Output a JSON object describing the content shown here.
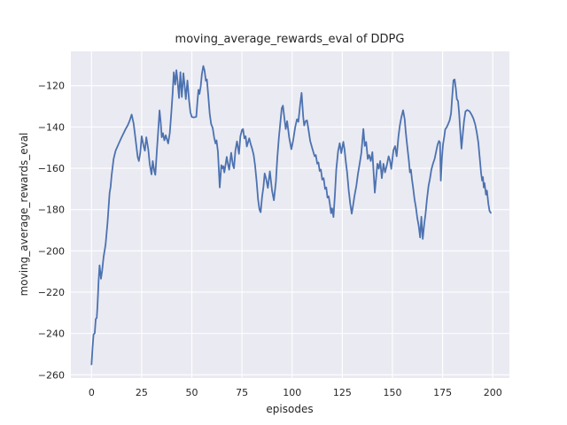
{
  "figure": {
    "background": "#ffffff"
  },
  "chart_data": {
    "type": "line",
    "title": "moving_average_rewards_eval of DDPG",
    "xlabel": "episodes",
    "ylabel": "moving_average_rewards_eval",
    "grid": true,
    "legend": "none",
    "plot_bg_color": "#eaeaf2",
    "grid_color": "#ffffff",
    "line_color": "#4c72b0",
    "text_color": "#262626",
    "xticks": [
      0,
      25,
      50,
      75,
      100,
      125,
      150,
      175,
      200
    ],
    "yticks": [
      -260,
      -240,
      -220,
      -200,
      -180,
      -160,
      -140,
      -120
    ],
    "xlim": [
      -10.3,
      208.3
    ],
    "ylim": [
      -261.6,
      -103.4
    ],
    "series_name": "moving_average_rewards_eval",
    "x": [
      0,
      0.5,
      1,
      1.6,
      2.1,
      2.6,
      3,
      3.5,
      4,
      4.7,
      5.3,
      6,
      7,
      8,
      9,
      9.5,
      10,
      11,
      11.5,
      12,
      13,
      14,
      15,
      16,
      17,
      18,
      19,
      20,
      21,
      22,
      23,
      23.6,
      24.3,
      25,
      26,
      26.6,
      27.3,
      28.3,
      29,
      29.9,
      30.5,
      31.3,
      31.8,
      32.6,
      33.3,
      33.9,
      34.5,
      35,
      35.6,
      36.3,
      37,
      37.6,
      38.2,
      39,
      39.7,
      40.4,
      41,
      41.7,
      42.3,
      43,
      43.6,
      44.3,
      45,
      45.8,
      46.4,
      47,
      47.8,
      48.6,
      49.3,
      50,
      51,
      52.2,
      52.8,
      53.3,
      53.8,
      54.4,
      55,
      55.7,
      56.3,
      57,
      57.5,
      58.2,
      58.9,
      59.6,
      60.4,
      61.1,
      61.8,
      62.3,
      63,
      63.9,
      64.7,
      65.2,
      65.7,
      66.2,
      67.4,
      68,
      68.6,
      69.6,
      70.5,
      71,
      71.7,
      72.5,
      73.5,
      74.2,
      75,
      75.5,
      76.2,
      76.8,
      77.4,
      78,
      78.6,
      79.4,
      80.1,
      80.8,
      81.5,
      82.3,
      83,
      83.7,
      84.3,
      85,
      85.7,
      86.3,
      87,
      87.9,
      88.9,
      90,
      90.9,
      91.9,
      92.6,
      93.4,
      94.2,
      94.8,
      95.4,
      96.1,
      96.8,
      97.5,
      98.5,
      99.6,
      100.5,
      101.5,
      102.4,
      103.1,
      104,
      104.7,
      105.5,
      106,
      106.7,
      107.4,
      108.1,
      109,
      110,
      111.2,
      111.8,
      112.5,
      113.1,
      113.7,
      114.3,
      115,
      115.7,
      116.4,
      117,
      117.6,
      118.2,
      118.8,
      119.4,
      119.9,
      120.6,
      121.3,
      122,
      122.9,
      123.7,
      124.5,
      125.5,
      126.1,
      126.7,
      127.4,
      128.2,
      129,
      129.7,
      130.4,
      131.1,
      132,
      132.8,
      133.7,
      134.5,
      135.5,
      136.2,
      136.9,
      137.7,
      138.4,
      139.2,
      140,
      140.6,
      141.2,
      142,
      142.5,
      143.2,
      143.9,
      144.7,
      145.5,
      146.3,
      147.2,
      148.1,
      148.8,
      149.4,
      150.5,
      151.3,
      152.1,
      153,
      153.7,
      154.4,
      155.3,
      156.1,
      156.6,
      157.2,
      157.7,
      158.2,
      158.7,
      159.2,
      159.7,
      160.3,
      161,
      161.7,
      162.4,
      163.1,
      163.8,
      164.4,
      165.1,
      165.9,
      166.5,
      167.2,
      168,
      168.7,
      169.4,
      170.2,
      171,
      171.8,
      172.5,
      173.2,
      173.7,
      174.1,
      174.7,
      175.2,
      175.8,
      176.3,
      177,
      177.8,
      178.5,
      179.2,
      179.7,
      180.4,
      181,
      181.6,
      182.1,
      182.7,
      183.2,
      183.8,
      184.4,
      185.1,
      185.7,
      186.4,
      187.3,
      188.3,
      189.3,
      190.3,
      191.2,
      192,
      192.8,
      193.5,
      194.2,
      194.7,
      195.1,
      195.5,
      195.9,
      196.6,
      197.1,
      197.8,
      198.4,
      199
    ],
    "y": [
      -255,
      -247,
      -240.5,
      -239.8,
      -233,
      -232.5,
      -226,
      -215,
      -207,
      -213.5,
      -209.5,
      -203,
      -197,
      -186,
      -172,
      -169,
      -163.5,
      -155.5,
      -153.5,
      -151.5,
      -149.3,
      -147.1,
      -145,
      -143,
      -141,
      -139.3,
      -137,
      -134,
      -138.5,
      -146.5,
      -154.5,
      -156.5,
      -152.5,
      -144.5,
      -149.5,
      -151.5,
      -145,
      -151,
      -158,
      -163,
      -156.5,
      -161.5,
      -163.2,
      -151,
      -141,
      -132,
      -138,
      -145,
      -143,
      -146.5,
      -144,
      -146,
      -148,
      -143,
      -134,
      -124,
      -113.5,
      -119.5,
      -112.5,
      -119,
      -126,
      -113.5,
      -125.5,
      -114,
      -120,
      -126.5,
      -117.5,
      -127,
      -133,
      -135.2,
      -135.4,
      -135.1,
      -127.5,
      -122,
      -124,
      -120.5,
      -114.5,
      -110.5,
      -112.5,
      -117.7,
      -117,
      -125,
      -133.5,
      -138.5,
      -140.5,
      -145,
      -148,
      -146.5,
      -152,
      -169.3,
      -158.5,
      -160,
      -159,
      -162,
      -154.5,
      -158,
      -160.7,
      -152.5,
      -158.6,
      -160,
      -151.5,
      -147,
      -153,
      -144.5,
      -141.5,
      -141,
      -145.5,
      -144.5,
      -149.5,
      -147.5,
      -145.5,
      -148.5,
      -150.7,
      -153.5,
      -158.5,
      -166.5,
      -175,
      -180,
      -181.3,
      -174,
      -169,
      -162.5,
      -165,
      -169.5,
      -161.5,
      -171,
      -175.5,
      -166.5,
      -155,
      -145,
      -137,
      -131,
      -129.7,
      -135.5,
      -141,
      -137.2,
      -145,
      -150.8,
      -146.5,
      -140.2,
      -136.3,
      -137.5,
      -129,
      -123.5,
      -135,
      -139.3,
      -137.2,
      -136.8,
      -141,
      -146.8,
      -150.3,
      -154.2,
      -153.6,
      -157.8,
      -157.2,
      -161.3,
      -160.6,
      -165.5,
      -164.8,
      -170,
      -169.3,
      -174.2,
      -173.6,
      -177.3,
      -181.8,
      -179.4,
      -183.6,
      -173,
      -160.5,
      -151.7,
      -147.9,
      -152.7,
      -147.2,
      -150.8,
      -156.4,
      -162,
      -170.8,
      -177.5,
      -182,
      -177.8,
      -173.3,
      -168.5,
      -162.7,
      -157.5,
      -152.5,
      -141,
      -149.2,
      -147.3,
      -155.5,
      -153.6,
      -156.5,
      -152.2,
      -162,
      -171.8,
      -163,
      -157.8,
      -160.2,
      -156.5,
      -164.8,
      -157.8,
      -162,
      -158.5,
      -154.2,
      -156.5,
      -160.3,
      -151.2,
      -149.3,
      -154.2,
      -144.5,
      -139.2,
      -135.5,
      -131.9,
      -136.3,
      -142.2,
      -147.8,
      -152.2,
      -156.5,
      -162,
      -160.7,
      -165.2,
      -169.5,
      -175,
      -179,
      -184.2,
      -188,
      -193.5,
      -183.5,
      -194.2,
      -186.5,
      -182,
      -175,
      -168.5,
      -165,
      -160.7,
      -157.8,
      -155.5,
      -151.8,
      -148.5,
      -146.8,
      -147.5,
      -166,
      -154.5,
      -148.5,
      -144.8,
      -141.2,
      -140.2,
      -138.5,
      -136.8,
      -133.5,
      -126.5,
      -117.4,
      -117,
      -121.5,
      -126.5,
      -127.5,
      -133,
      -142,
      -150.5,
      -143,
      -137,
      -132.5,
      -131.8,
      -132.3,
      -133.8,
      -135.8,
      -138.6,
      -142.5,
      -147.5,
      -155,
      -162.5,
      -166,
      -164.3,
      -169.3,
      -167.2,
      -172.8,
      -170.8,
      -177.2,
      -180.7,
      -181.6
    ]
  }
}
